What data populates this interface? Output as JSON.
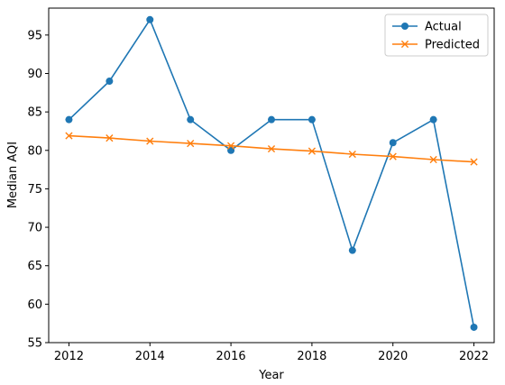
{
  "chart_data": {
    "type": "line",
    "title": "",
    "xlabel": "Year",
    "ylabel": "Median AQI",
    "x": [
      2012,
      2013,
      2014,
      2015,
      2016,
      2017,
      2018,
      2019,
      2020,
      2021,
      2022
    ],
    "xlim": [
      2011.5,
      2022.5
    ],
    "ylim": [
      55,
      98.5
    ],
    "xticks": [
      "2012",
      "2014",
      "2016",
      "2018",
      "2020",
      "2022"
    ],
    "yticks": [
      "55",
      "60",
      "65",
      "70",
      "75",
      "80",
      "85",
      "90",
      "95"
    ],
    "grid": false,
    "legend_position": "top-right",
    "series": [
      {
        "name": "Actual",
        "color": "#1f77b4",
        "marker": "circle",
        "values": [
          84,
          89,
          97,
          84,
          80,
          84,
          84,
          67,
          81,
          84,
          57
        ]
      },
      {
        "name": "Predicted",
        "color": "#ff7f0e",
        "marker": "x",
        "values": [
          81.9,
          81.6,
          81.2,
          80.9,
          80.6,
          80.2,
          79.9,
          79.5,
          79.2,
          78.8,
          78.5
        ]
      }
    ]
  }
}
